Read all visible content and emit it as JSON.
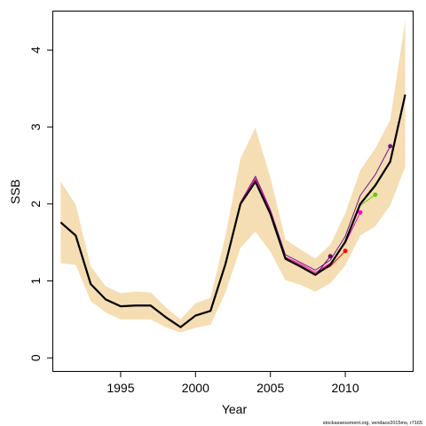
{
  "chart_data": {
    "type": "line",
    "xlabel": "Year",
    "ylabel": "SSB",
    "xlim": [
      1990.5,
      2014.5
    ],
    "ylim": [
      -0.17,
      4.5
    ],
    "x_ticks": [
      1995,
      2000,
      2005,
      2010
    ],
    "y_ticks": [
      0,
      1,
      2,
      3,
      4
    ],
    "grid": false,
    "confidence_band": {
      "color": "#f5deb3",
      "x": [
        1991,
        1992,
        1993,
        1994,
        1995,
        1996,
        1997,
        1998,
        1999,
        2000,
        2001,
        2002,
        2003,
        2004,
        2005,
        2006,
        2007,
        2008,
        2009,
        2010,
        2011,
        2012,
        2013,
        2014
      ],
      "lower": [
        1.23,
        1.21,
        0.74,
        0.59,
        0.5,
        0.5,
        0.5,
        0.4,
        0.33,
        0.39,
        0.43,
        0.85,
        1.43,
        1.64,
        1.38,
        1.01,
        0.95,
        0.86,
        0.97,
        1.2,
        1.59,
        1.71,
        1.98,
        2.48
      ],
      "upper": [
        2.29,
        1.99,
        1.19,
        0.93,
        0.84,
        0.86,
        0.85,
        0.66,
        0.5,
        0.71,
        0.78,
        1.59,
        2.59,
        2.99,
        2.34,
        1.54,
        1.41,
        1.29,
        1.47,
        1.88,
        2.44,
        2.72,
        3.09,
        4.38
      ]
    },
    "series": [
      {
        "color": "#000000",
        "x": [
          1991,
          1992,
          1993,
          1994,
          1995,
          1996,
          1997,
          1998,
          1999,
          2000,
          2001,
          2002,
          2003,
          2004,
          2005,
          2006,
          2007,
          2008,
          2009,
          2010,
          2011,
          2012,
          2013,
          2014
        ],
        "values": [
          1.76,
          1.59,
          0.96,
          0.76,
          0.67,
          0.68,
          0.68,
          0.53,
          0.4,
          0.55,
          0.61,
          1.22,
          2.0,
          2.29,
          1.87,
          1.29,
          1.19,
          1.08,
          1.21,
          1.51,
          2.0,
          2.24,
          2.55,
          3.42
        ]
      },
      {
        "color": "#6a1b8a",
        "x": [
          1991,
          1992,
          1993,
          1994,
          1995,
          1996,
          1997,
          1998,
          1999,
          2000,
          2001,
          2002,
          2003,
          2004,
          2005,
          2006,
          2007,
          2008,
          2009,
          2010,
          2011,
          2012,
          2013
        ],
        "values": [
          1.76,
          1.59,
          0.96,
          0.76,
          0.67,
          0.68,
          0.68,
          0.53,
          0.4,
          0.55,
          0.61,
          1.22,
          2.02,
          2.36,
          1.92,
          1.34,
          1.24,
          1.14,
          1.27,
          1.58,
          2.11,
          2.38,
          2.75
        ]
      },
      {
        "color": "#ff00cc",
        "x": [
          1991,
          1992,
          1993,
          1994,
          1995,
          1996,
          1997,
          1998,
          1999,
          2000,
          2001,
          2002,
          2003,
          2004,
          2005,
          2006,
          2007,
          2008,
          2009,
          2010,
          2011
        ],
        "values": [
          1.76,
          1.59,
          0.96,
          0.76,
          0.67,
          0.68,
          0.68,
          0.53,
          0.4,
          0.55,
          0.61,
          1.22,
          2.01,
          2.33,
          1.9,
          1.31,
          1.22,
          1.11,
          1.23,
          1.49,
          1.89
        ]
      },
      {
        "color": "#ff0000",
        "x": [
          1991,
          1992,
          1993,
          1994,
          1995,
          1996,
          1997,
          1998,
          1999,
          2000,
          2001,
          2002,
          2003,
          2004,
          2005,
          2006,
          2007,
          2008,
          2009,
          2010
        ],
        "values": [
          1.76,
          1.59,
          0.96,
          0.76,
          0.67,
          0.68,
          0.68,
          0.53,
          0.4,
          0.55,
          0.61,
          1.22,
          2.0,
          2.31,
          1.88,
          1.3,
          1.2,
          1.09,
          1.19,
          1.39
        ]
      },
      {
        "color": "#660066",
        "x": [
          1991,
          1992,
          1993,
          1994,
          1995,
          1996,
          1997,
          1998,
          1999,
          2000,
          2001,
          2002,
          2003,
          2004,
          2005,
          2006,
          2007,
          2008,
          2009
        ],
        "values": [
          1.76,
          1.59,
          0.96,
          0.76,
          0.67,
          0.68,
          0.68,
          0.53,
          0.4,
          0.55,
          0.61,
          1.22,
          2.0,
          2.28,
          1.86,
          1.28,
          1.18,
          1.07,
          1.32
        ]
      },
      {
        "color": "#66cc00",
        "x": [
          2011,
          2012
        ],
        "values": [
          1.98,
          2.12
        ]
      }
    ],
    "end_points": [
      {
        "x": 2009,
        "y": 1.32,
        "color": "#660066"
      },
      {
        "x": 2010,
        "y": 1.39,
        "color": "#ff0000"
      },
      {
        "x": 2011,
        "y": 1.89,
        "color": "#ff00cc"
      },
      {
        "x": 2012,
        "y": 2.12,
        "color": "#66cc00"
      },
      {
        "x": 2013,
        "y": 2.75,
        "color": "#6a1b8a"
      }
    ]
  },
  "footer": "stockassessment.org, vendace2015ms, r7165"
}
